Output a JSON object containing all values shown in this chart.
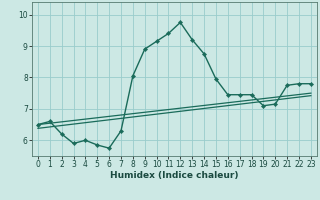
{
  "title": "",
  "xlabel": "Humidex (Indice chaleur)",
  "background_color": "#cce8e4",
  "grid_color": "#99cccc",
  "line_color": "#1a6b5a",
  "xlim": [
    -0.5,
    23.5
  ],
  "ylim": [
    5.5,
    10.4
  ],
  "yticks": [
    6,
    7,
    8,
    9,
    10
  ],
  "xticks": [
    0,
    1,
    2,
    3,
    4,
    5,
    6,
    7,
    8,
    9,
    10,
    11,
    12,
    13,
    14,
    15,
    16,
    17,
    18,
    19,
    20,
    21,
    22,
    23
  ],
  "main_x": [
    0,
    1,
    2,
    3,
    4,
    5,
    6,
    7,
    8,
    9,
    10,
    11,
    12,
    13,
    14,
    15,
    16,
    17,
    18,
    19,
    20,
    21,
    22,
    23
  ],
  "main_y": [
    6.5,
    6.6,
    6.2,
    5.9,
    6.0,
    5.85,
    5.75,
    6.3,
    8.05,
    8.9,
    9.15,
    9.4,
    9.75,
    9.2,
    8.75,
    7.95,
    7.45,
    7.45,
    7.45,
    7.1,
    7.15,
    7.75,
    7.8,
    7.8
  ],
  "line2_x": [
    0,
    23
  ],
  "line2_y": [
    6.5,
    7.5
  ],
  "line3_x": [
    0,
    23
  ],
  "line3_y": [
    6.38,
    7.42
  ]
}
